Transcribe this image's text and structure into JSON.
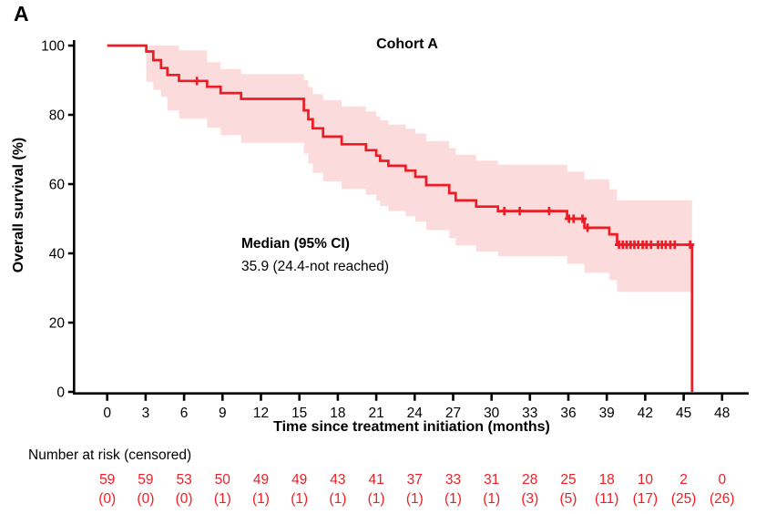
{
  "figure": {
    "panel_label": "A"
  },
  "chart_data": {
    "type": "line",
    "subtype": "kaplan-meier-step-curve-with-confidence-band",
    "title": "Cohort A",
    "xlabel": "Time since treatment initiation (months)",
    "ylabel": "Overall survival (%)",
    "xlim": [
      0,
      48
    ],
    "ylim": [
      0,
      100
    ],
    "grid": false,
    "x_ticks": [
      0,
      3,
      6,
      9,
      12,
      15,
      18,
      21,
      24,
      27,
      30,
      33,
      36,
      39,
      42,
      45,
      48
    ],
    "y_ticks": [
      0,
      20,
      40,
      60,
      80,
      100
    ],
    "median_label": "Median (95% CI)",
    "median_value": "35.9 (24.4-not reached)",
    "colors": {
      "curve": "#ED1C24",
      "band_fill": "#ED1C24",
      "band_opacity": 0.16,
      "axis": "#000000",
      "risk_text": "#F01E23"
    },
    "series": [
      {
        "name": "Cohort A",
        "steps": [
          [
            0,
            100
          ],
          [
            3.05,
            98.3
          ],
          [
            3.6,
            95.8
          ],
          [
            4.2,
            93.5
          ],
          [
            4.7,
            91.5
          ],
          [
            5.6,
            89.8
          ],
          [
            7.8,
            88.1
          ],
          [
            8.85,
            86.3
          ],
          [
            10.45,
            84.6
          ],
          [
            15.35,
            81.3
          ],
          [
            15.7,
            78.7
          ],
          [
            16.05,
            76.1
          ],
          [
            16.85,
            73.7
          ],
          [
            18.3,
            71.5
          ],
          [
            20.2,
            69.8
          ],
          [
            21.0,
            68.2
          ],
          [
            21.3,
            66.7
          ],
          [
            21.95,
            65.3
          ],
          [
            23.3,
            63.9
          ],
          [
            24.05,
            62.1
          ],
          [
            24.9,
            59.7
          ],
          [
            26.7,
            57.4
          ],
          [
            27.2,
            55.3
          ],
          [
            28.8,
            53.5
          ],
          [
            30.5,
            52.2
          ],
          [
            35.9,
            50.0
          ],
          [
            37.25,
            47.4
          ],
          [
            39.2,
            45.5
          ],
          [
            39.8,
            42.5
          ],
          [
            45.65,
            0
          ]
        ],
        "censor_marks": [
          [
            7.0,
            89.8
          ],
          [
            31.0,
            52.2
          ],
          [
            32.2,
            52.2
          ],
          [
            34.5,
            52.2
          ],
          [
            36.05,
            50.0
          ],
          [
            36.4,
            50.0
          ],
          [
            37.1,
            50.0
          ],
          [
            37.5,
            47.4
          ],
          [
            39.95,
            42.5
          ],
          [
            40.25,
            42.5
          ],
          [
            40.55,
            42.5
          ],
          [
            40.85,
            42.5
          ],
          [
            41.15,
            42.5
          ],
          [
            41.45,
            42.5
          ],
          [
            41.8,
            42.5
          ],
          [
            42.1,
            42.5
          ],
          [
            42.45,
            42.5
          ],
          [
            43.0,
            42.5
          ],
          [
            43.3,
            42.5
          ],
          [
            43.6,
            42.5
          ],
          [
            43.95,
            42.5
          ],
          [
            44.3,
            42.5
          ],
          [
            45.5,
            42.5
          ]
        ],
        "ci_steps": [
          [
            3.05,
            89.5,
            100
          ],
          [
            3.6,
            87.2,
            100
          ],
          [
            4.2,
            85.2,
            100
          ],
          [
            4.7,
            81.3,
            100
          ],
          [
            5.6,
            78.9,
            98.6
          ],
          [
            7.8,
            76.3,
            95.2
          ],
          [
            8.85,
            74.1,
            93.2
          ],
          [
            10.45,
            71.9,
            91.8
          ],
          [
            15.35,
            68.8,
            90.0
          ],
          [
            15.7,
            65.9,
            88.0
          ],
          [
            16.05,
            63.2,
            86.0
          ],
          [
            16.85,
            60.8,
            84.2
          ],
          [
            18.3,
            58.6,
            82.4
          ],
          [
            20.2,
            56.9,
            81.0
          ],
          [
            21.0,
            55.2,
            79.6
          ],
          [
            21.3,
            53.7,
            78.4
          ],
          [
            21.95,
            52.2,
            77.2
          ],
          [
            23.3,
            50.7,
            76.0
          ],
          [
            24.05,
            49.2,
            74.6
          ],
          [
            24.9,
            46.7,
            72.4
          ],
          [
            26.7,
            44.4,
            70.4
          ],
          [
            27.2,
            42.3,
            68.5
          ],
          [
            28.8,
            40.5,
            66.8
          ],
          [
            30.5,
            39.2,
            65.6
          ],
          [
            35.9,
            37.0,
            63.6
          ],
          [
            37.25,
            34.4,
            61.4
          ],
          [
            39.2,
            32.3,
            58.5
          ],
          [
            39.8,
            28.9,
            55.3
          ]
        ],
        "ci_end_time": 45.65
      }
    ],
    "risk_table": {
      "label": "Number at risk (censored)",
      "times": [
        0,
        3,
        6,
        9,
        12,
        15,
        18,
        21,
        24,
        27,
        30,
        33,
        36,
        39,
        42,
        45,
        48
      ],
      "at_risk": [
        59,
        59,
        53,
        50,
        49,
        49,
        43,
        41,
        37,
        33,
        31,
        28,
        25,
        18,
        10,
        2,
        0
      ],
      "censored": [
        0,
        0,
        0,
        1,
        1,
        1,
        1,
        1,
        1,
        1,
        1,
        3,
        5,
        11,
        17,
        25,
        26
      ]
    }
  }
}
